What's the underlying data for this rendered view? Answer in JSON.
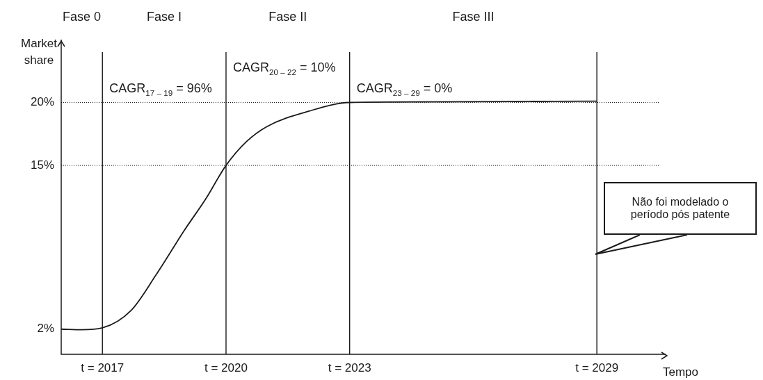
{
  "chart_data": {
    "type": "line",
    "xlabel": "Tempo",
    "ylabel": "Market share",
    "x": [
      2016,
      2016.5,
      2017,
      2017.7,
      2018.3,
      2019,
      2019.5,
      2020,
      2020.5,
      2021,
      2022,
      2023,
      2025,
      2027,
      2029
    ],
    "series": [
      {
        "color": "#1a1a1a",
        "values": [
          2,
          1.95,
          2.1,
          3.5,
          6.3,
          9.9,
          12.3,
          15,
          16.9,
          18.1,
          19.3,
          20,
          20.05,
          20.08,
          20.1
        ]
      }
    ],
    "xlim": [
      2016,
      2030.5
    ],
    "ylim": [
      0,
      24
    ],
    "xticks": [
      {
        "value": 2017,
        "label": "t = 2017"
      },
      {
        "value": 2020,
        "label": "t = 2020"
      },
      {
        "value": 2023,
        "label": "t = 2023"
      },
      {
        "value": 2029,
        "label": "t = 2029"
      }
    ],
    "yticks": [
      {
        "value": 2,
        "label": "2%"
      },
      {
        "value": 15,
        "label": "15%"
      },
      {
        "value": 20,
        "label": "20%"
      }
    ],
    "grid": false,
    "legend": false,
    "marker": "none",
    "line_style": "solid",
    "ref_lines": [
      {
        "axis": "x",
        "value": 2017,
        "color": "#1a1a1a",
        "line_style": "solid"
      },
      {
        "axis": "x",
        "value": 2020,
        "color": "#1a1a1a",
        "line_style": "solid"
      },
      {
        "axis": "x",
        "value": 2023,
        "color": "#1a1a1a",
        "line_style": "solid"
      },
      {
        "axis": "x",
        "value": 2029,
        "color": "#1a1a1a",
        "line_style": "solid"
      },
      {
        "axis": "y",
        "value": 15,
        "color": "#1a1a1a",
        "line_style": "dotted"
      },
      {
        "axis": "y",
        "value": 20,
        "color": "#1a1a1a",
        "line_style": "dotted"
      }
    ],
    "annotations": [
      "Fase 0",
      "Fase I",
      "Fase II",
      "Fase III",
      "CAGR$_{17 – 19}$ = 96%",
      "CAGR$_{20 – 22}$ = 10%",
      "CAGR$_{23 – 29}$ = 0%",
      "Não foi modelado o período pós patente"
    ]
  }
}
